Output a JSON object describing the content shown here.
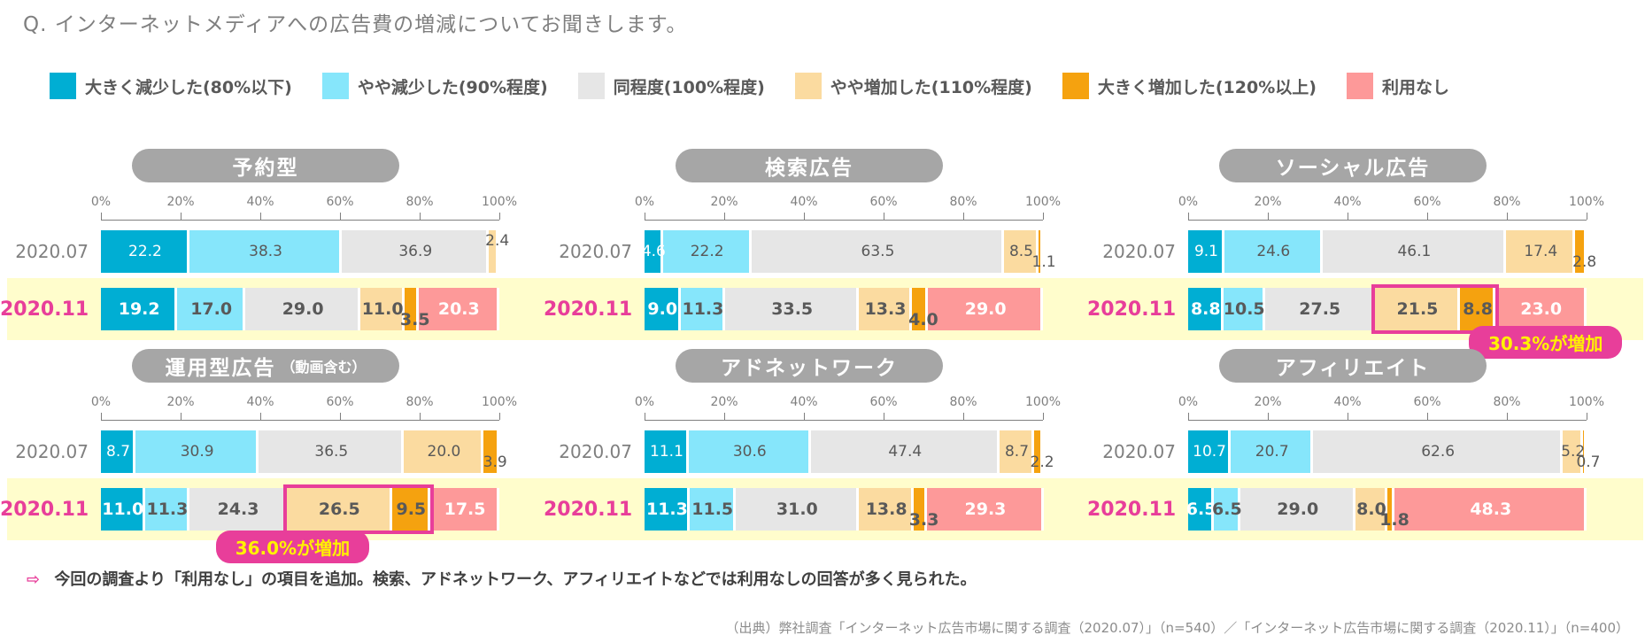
{
  "question": "Q.  インターネットメディアへの広告費の増減についてお聞きします。",
  "legend": [
    {
      "label": "大きく減少した(80%以下)",
      "color": "#00aed3"
    },
    {
      "label": "やや減少した(90%程度)",
      "color": "#86e6fb"
    },
    {
      "label": "同程度(100%程度)",
      "color": "#e6e6e6"
    },
    {
      "label": "やや増加した(110%程度)",
      "color": "#fbdba0"
    },
    {
      "label": "大きく増加した(120%以上)",
      "color": "#f5a20f"
    },
    {
      "label": "利用なし",
      "color": "#fd9999"
    }
  ],
  "chart_data": [
    {
      "type": "bar",
      "orientation": "horizontal",
      "stacked": true,
      "title": "予約型",
      "subtitle": "",
      "xticks": [
        "0%",
        "20%",
        "40%",
        "60%",
        "80%",
        "100%"
      ],
      "xlim": [
        0,
        100
      ],
      "categories": [
        "2020.07",
        "2020.11"
      ],
      "series": [
        {
          "name": "大きく減少した(80%以下)",
          "values": [
            22.2,
            19.2
          ]
        },
        {
          "name": "やや減少した(90%程度)",
          "values": [
            38.3,
            17.0
          ]
        },
        {
          "name": "同程度(100%程度)",
          "values": [
            36.9,
            29.0
          ]
        },
        {
          "name": "やや増加した(110%程度)",
          "values": [
            2.4,
            11.0
          ]
        },
        {
          "name": "大きく増加した(120%以上)",
          "values": [
            0,
            3.5
          ]
        },
        {
          "name": "利用なし",
          "values": [
            0,
            20.3
          ]
        }
      ],
      "labels": [
        [
          "22.2",
          "38.3",
          "36.9",
          "2.4",
          "",
          ""
        ],
        [
          "19.2",
          "17.0",
          "29.0",
          "11.0",
          "3.5",
          "20.3"
        ]
      ]
    },
    {
      "type": "bar",
      "orientation": "horizontal",
      "stacked": true,
      "title": "検索広告",
      "subtitle": "",
      "xticks": [
        "0%",
        "20%",
        "40%",
        "60%",
        "80%",
        "100%"
      ],
      "xlim": [
        0,
        100
      ],
      "categories": [
        "2020.07",
        "2020.11"
      ],
      "series": [
        {
          "name": "大きく減少した(80%以下)",
          "values": [
            4.6,
            9.0
          ]
        },
        {
          "name": "やや減少した(90%程度)",
          "values": [
            22.2,
            11.3
          ]
        },
        {
          "name": "同程度(100%程度)",
          "values": [
            63.5,
            33.5
          ]
        },
        {
          "name": "やや増加した(110%程度)",
          "values": [
            8.5,
            13.3
          ]
        },
        {
          "name": "大きく増加した(120%以上)",
          "values": [
            1.1,
            4.0
          ]
        },
        {
          "name": "利用なし",
          "values": [
            0,
            29.0
          ]
        }
      ],
      "labels": [
        [
          "4.6",
          "22.2",
          "63.5",
          "8.5",
          "1.1",
          ""
        ],
        [
          "9.0",
          "11.3",
          "33.5",
          "13.3",
          "4.0",
          "29.0"
        ]
      ]
    },
    {
      "type": "bar",
      "orientation": "horizontal",
      "stacked": true,
      "title": "ソーシャル広告",
      "subtitle": "",
      "xticks": [
        "0%",
        "20%",
        "40%",
        "60%",
        "80%",
        "100%"
      ],
      "xlim": [
        0,
        100
      ],
      "categories": [
        "2020.07",
        "2020.11"
      ],
      "series": [
        {
          "name": "大きく減少した(80%以下)",
          "values": [
            9.1,
            8.8
          ]
        },
        {
          "name": "やや減少した(90%程度)",
          "values": [
            24.6,
            10.5
          ]
        },
        {
          "name": "同程度(100%程度)",
          "values": [
            46.1,
            27.5
          ]
        },
        {
          "name": "やや増加した(110%程度)",
          "values": [
            17.4,
            21.5
          ]
        },
        {
          "name": "大きく増加した(120%以上)",
          "values": [
            2.8,
            8.8
          ]
        },
        {
          "name": "利用なし",
          "values": [
            0,
            23.0
          ]
        }
      ],
      "labels": [
        [
          "9.1",
          "24.6",
          "46.1",
          "17.4",
          "2.8",
          ""
        ],
        [
          "8.8",
          "10.5",
          "27.5",
          "21.5",
          "8.8",
          "23.0"
        ]
      ],
      "annotation": "30.3%が増加"
    },
    {
      "type": "bar",
      "orientation": "horizontal",
      "stacked": true,
      "title": "運用型広告",
      "subtitle": "（動画含む）",
      "xticks": [
        "0%",
        "20%",
        "40%",
        "60%",
        "80%",
        "100%"
      ],
      "xlim": [
        0,
        100
      ],
      "categories": [
        "2020.07",
        "2020.11"
      ],
      "series": [
        {
          "name": "大きく減少した(80%以下)",
          "values": [
            8.7,
            11.0
          ]
        },
        {
          "name": "やや減少した(90%程度)",
          "values": [
            30.9,
            11.3
          ]
        },
        {
          "name": "同程度(100%程度)",
          "values": [
            36.5,
            24.3
          ]
        },
        {
          "name": "やや増加した(110%程度)",
          "values": [
            20.0,
            26.5
          ]
        },
        {
          "name": "大きく増加した(120%以上)",
          "values": [
            3.9,
            9.5
          ]
        },
        {
          "name": "利用なし",
          "values": [
            0,
            17.5
          ]
        }
      ],
      "labels": [
        [
          "8.7",
          "30.9",
          "36.5",
          "20.0",
          "3.9",
          ""
        ],
        [
          "11.0",
          "11.3",
          "24.3",
          "26.5",
          "9.5",
          "17.5"
        ]
      ],
      "annotation": "36.0%が増加"
    },
    {
      "type": "bar",
      "orientation": "horizontal",
      "stacked": true,
      "title": "アドネットワーク",
      "subtitle": "",
      "xticks": [
        "0%",
        "20%",
        "40%",
        "60%",
        "80%",
        "100%"
      ],
      "xlim": [
        0,
        100
      ],
      "categories": [
        "2020.07",
        "2020.11"
      ],
      "series": [
        {
          "name": "大きく減少した(80%以下)",
          "values": [
            11.1,
            11.3
          ]
        },
        {
          "name": "やや減少した(90%程度)",
          "values": [
            30.6,
            11.5
          ]
        },
        {
          "name": "同程度(100%程度)",
          "values": [
            47.4,
            31.0
          ]
        },
        {
          "name": "やや増加した(110%程度)",
          "values": [
            8.7,
            13.8
          ]
        },
        {
          "name": "大きく増加した(120%以上)",
          "values": [
            2.2,
            3.3
          ]
        },
        {
          "name": "利用なし",
          "values": [
            0,
            29.3
          ]
        }
      ],
      "labels": [
        [
          "11.1",
          "30.6",
          "47.4",
          "8.7",
          "2.2",
          ""
        ],
        [
          "11.3",
          "11.5",
          "31.0",
          "13.8",
          "3.3",
          "29.3"
        ]
      ]
    },
    {
      "type": "bar",
      "orientation": "horizontal",
      "stacked": true,
      "title": "アフィリエイト",
      "subtitle": "",
      "xticks": [
        "0%",
        "20%",
        "40%",
        "60%",
        "80%",
        "100%"
      ],
      "xlim": [
        0,
        100
      ],
      "categories": [
        "2020.07",
        "2020.11"
      ],
      "series": [
        {
          "name": "大きく減少した(80%以下)",
          "values": [
            10.7,
            6.5
          ]
        },
        {
          "name": "やや減少した(90%程度)",
          "values": [
            20.7,
            6.5
          ]
        },
        {
          "name": "同程度(100%程度)",
          "values": [
            62.6,
            29.0
          ]
        },
        {
          "name": "やや増加した(110%程度)",
          "values": [
            5.2,
            8.0
          ]
        },
        {
          "name": "大きく増加した(120%以上)",
          "values": [
            0.7,
            1.8
          ]
        },
        {
          "name": "利用なし",
          "values": [
            0,
            48.3
          ]
        }
      ],
      "labels": [
        [
          "10.7",
          "20.7",
          "62.6",
          "5.2",
          "0.7",
          ""
        ],
        [
          "6.5",
          "6.5",
          "29.0",
          "8.0",
          "1.8",
          "48.3"
        ]
      ]
    }
  ],
  "note_arrow": "⇨",
  "note": "今回の調査より「利用なし」の項目を追加。検索、アドネットワーク、アフィリエイトなどでは利用なしの回答が多く見られた。",
  "source": "（出典）弊社調査「インターネット広告市場に関する調査（2020.07）」（n=540）／「インターネット広告市場に関する調査（2020.11）」（n=400）"
}
